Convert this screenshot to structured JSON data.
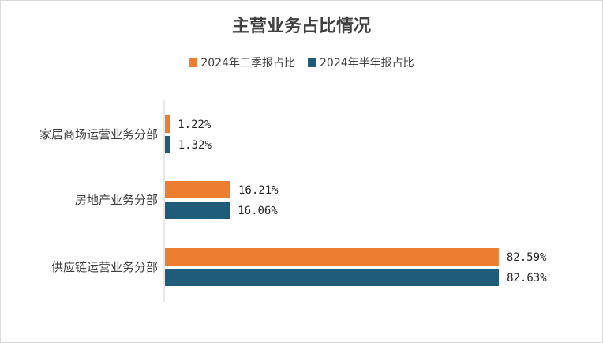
{
  "chart_data": {
    "type": "bar",
    "orientation": "horizontal",
    "title": "主营业务占比情况",
    "categories": [
      "家居商场运营业务分部",
      "房地产业务分部",
      "供应链运营业务分部"
    ],
    "series": [
      {
        "name": "2024年三季报占比",
        "color": "#ED7D31",
        "values": [
          1.22,
          16.21,
          82.59
        ],
        "labels": [
          "1.22%",
          "16.21%",
          "82.59%"
        ]
      },
      {
        "name": "2024年半年报占比",
        "color": "#1F5C7A",
        "values": [
          1.32,
          16.06,
          82.63
        ],
        "labels": [
          "1.32%",
          "16.06%",
          "82.63%"
        ]
      }
    ],
    "xlabel": "",
    "ylabel": "",
    "xlim": [
      0,
      100
    ],
    "grid": false,
    "legend_position": "top"
  }
}
